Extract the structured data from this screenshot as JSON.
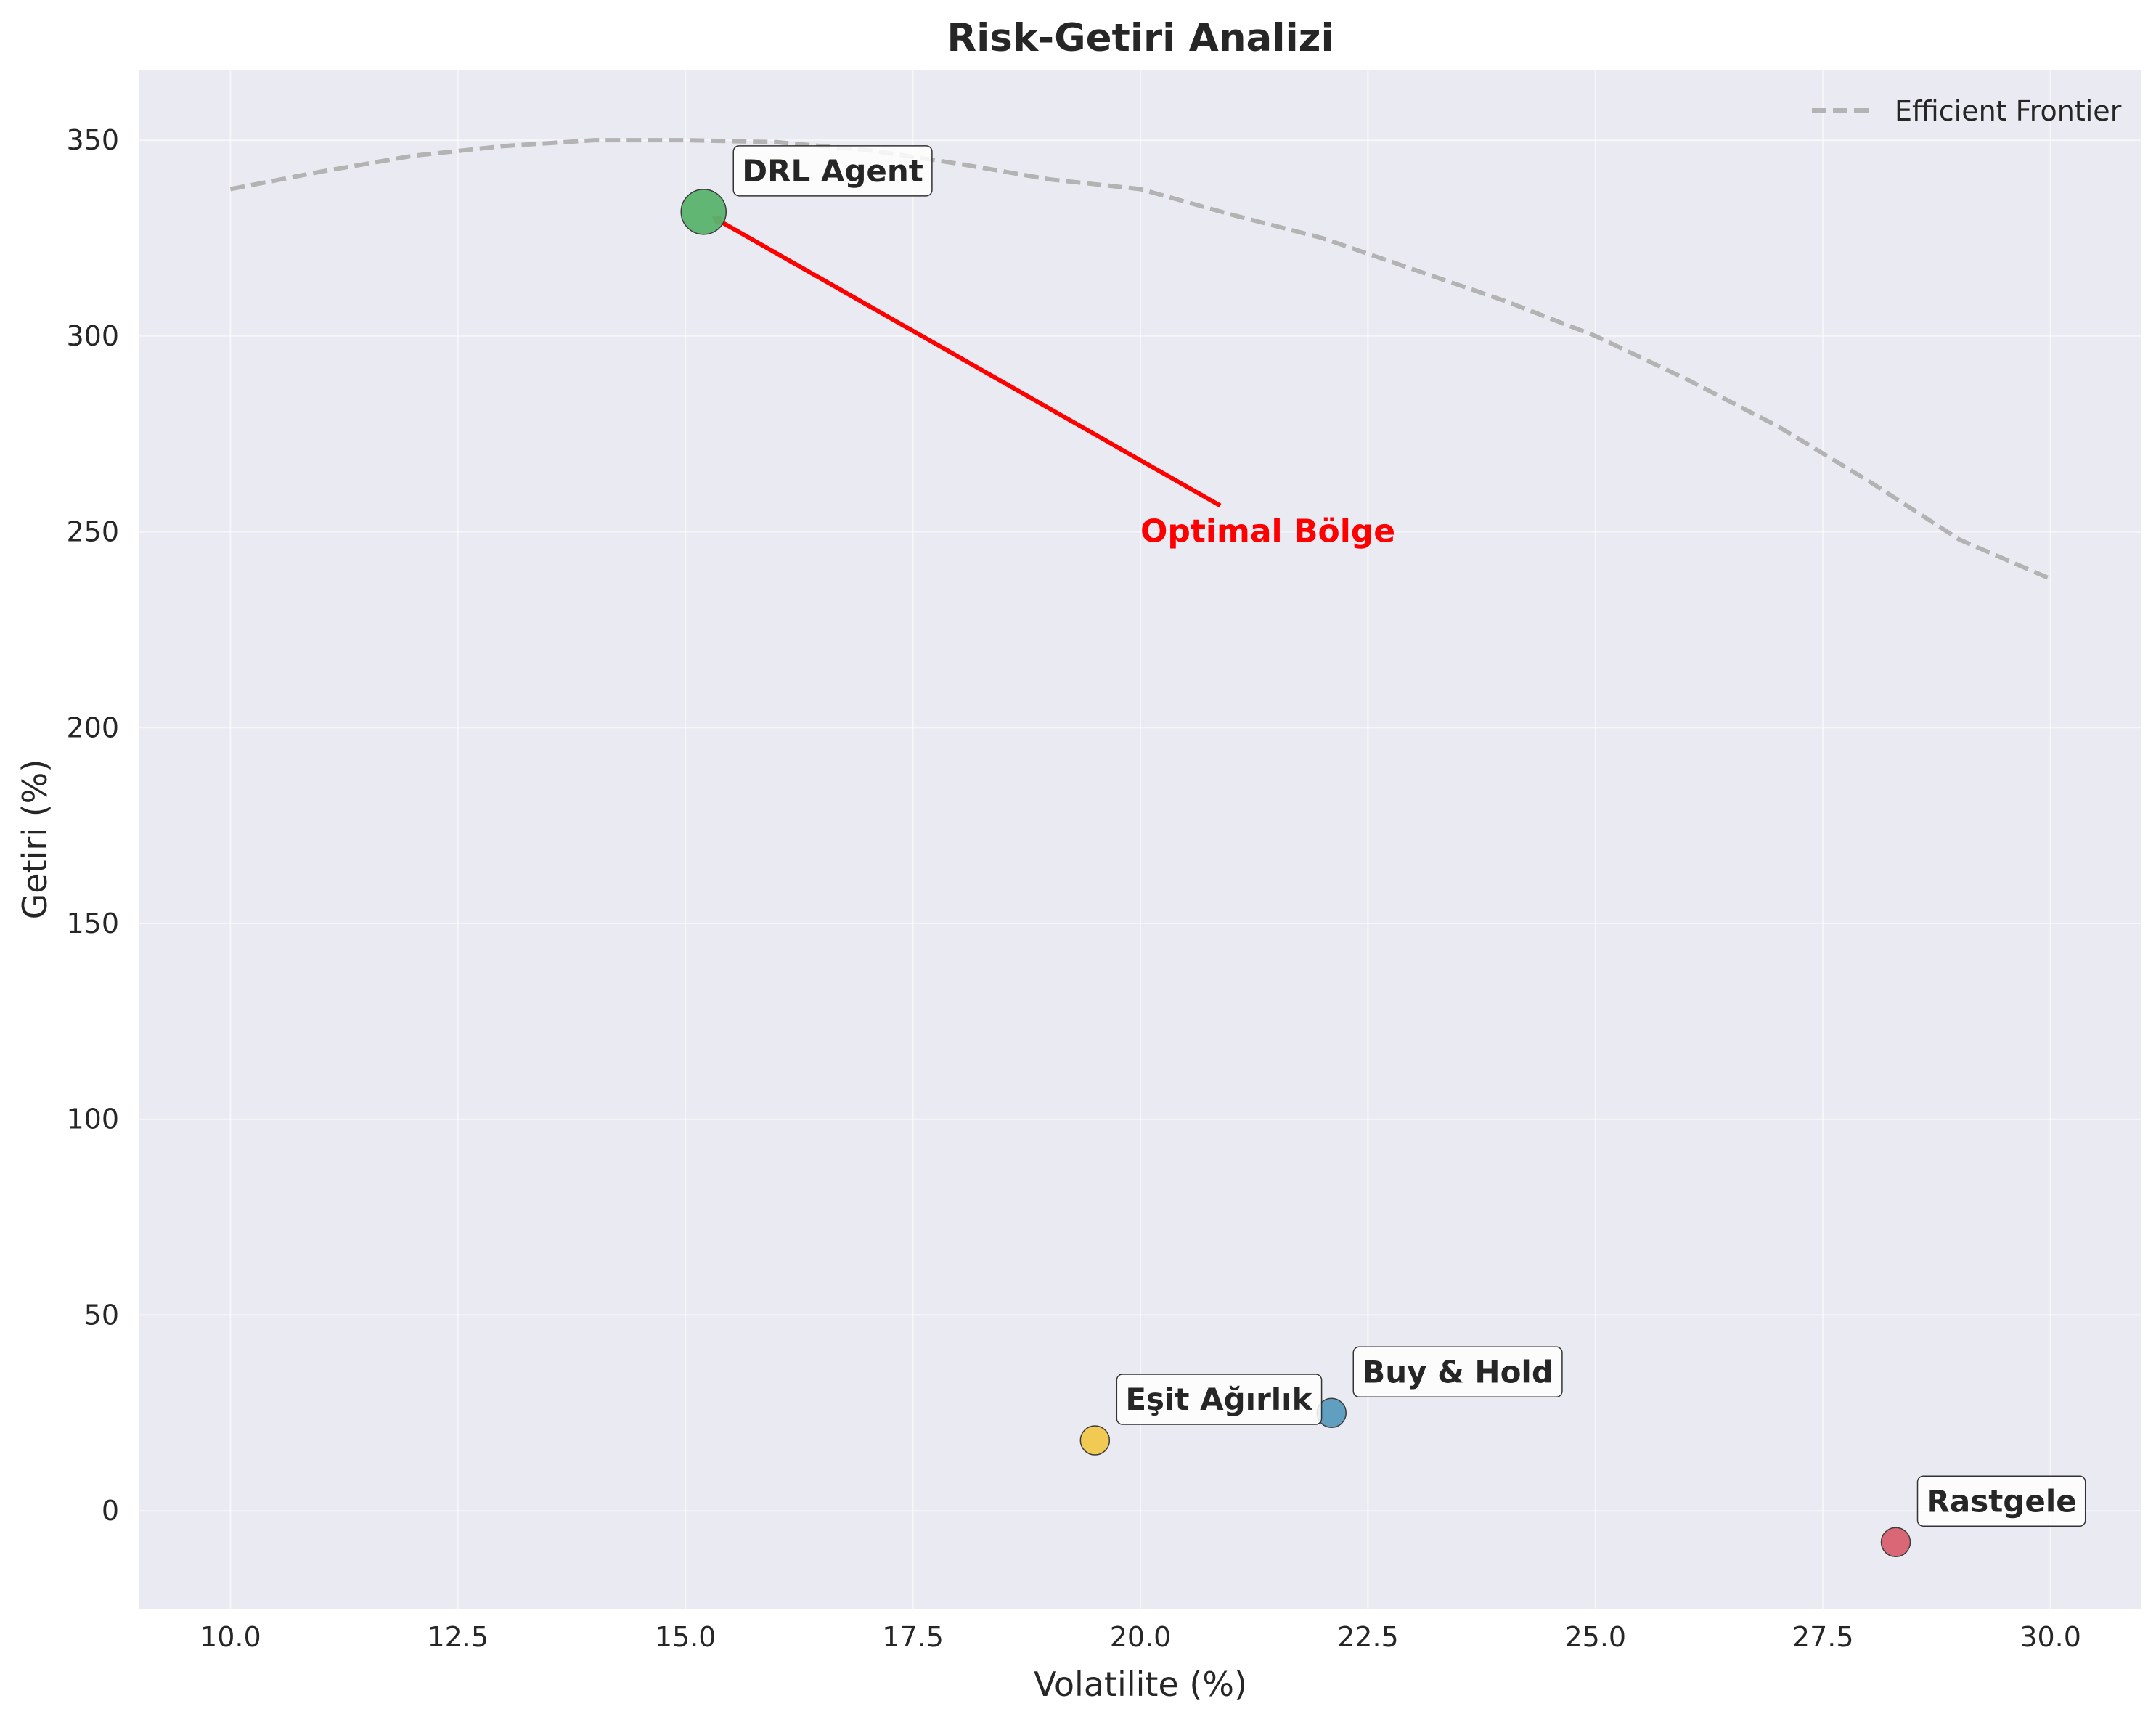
{
  "chart_data": {
    "type": "scatter",
    "title": "Risk-Getiri Analizi",
    "xlabel": "Volatilite (%)",
    "ylabel": "Getiri (%)",
    "xlim": [
      9,
      31
    ],
    "ylim": [
      -25,
      368
    ],
    "xticks": [
      10.0,
      12.5,
      15.0,
      17.5,
      20.0,
      22.5,
      25.0,
      27.5,
      30.0
    ],
    "xtick_labels": [
      "10.0",
      "12.5",
      "15.0",
      "17.5",
      "20.0",
      "22.5",
      "25.0",
      "27.5",
      "30.0"
    ],
    "yticks": [
      0,
      50,
      100,
      150,
      200,
      250,
      300,
      350
    ],
    "ytick_labels": [
      "0",
      "50",
      "100",
      "150",
      "200",
      "250",
      "300",
      "350"
    ],
    "grid": true,
    "background": "#eaeaf2",
    "points": [
      {
        "label": "DRL Agent",
        "x": 15.2,
        "y": 331.7,
        "size": "large",
        "color": "#5ab46e"
      },
      {
        "label": "Buy & Hold",
        "x": 22.1,
        "y": 25.0,
        "size": "small",
        "color": "#5a9bbf"
      },
      {
        "label": "Eşit Ağırlık",
        "x": 19.5,
        "y": 18.0,
        "size": "small",
        "color": "#f2c94c"
      },
      {
        "label": "Rastgele",
        "x": 28.3,
        "y": -8.0,
        "size": "small",
        "color": "#d96070"
      }
    ],
    "frontier": {
      "name": "Efficient Frontier",
      "style": "dashed",
      "color": "#b3b3b3",
      "x": [
        10.0,
        11.0,
        12.0,
        13.0,
        14.0,
        15.0,
        16.0,
        17.0,
        18.0,
        19.0,
        20.0,
        21.0,
        22.0,
        23.0,
        24.0,
        25.0,
        26.0,
        27.0,
        28.0,
        29.0,
        30.0
      ],
      "y": [
        337.5,
        342.0,
        346.0,
        348.5,
        350.0,
        350.0,
        349.5,
        347.5,
        344.0,
        340.0,
        337.5,
        331.0,
        325.0,
        317.0,
        309.0,
        300.0,
        289.0,
        277.0,
        263.0,
        248.0,
        238.0
      ]
    },
    "annotation": {
      "text": "Optimal Bölge",
      "x": 20.0,
      "y": 250.0,
      "arrow_to": "DRL Agent",
      "color": "#ff0000"
    },
    "legend": {
      "position": "top-right",
      "entries": [
        "Efficient Frontier"
      ]
    }
  }
}
